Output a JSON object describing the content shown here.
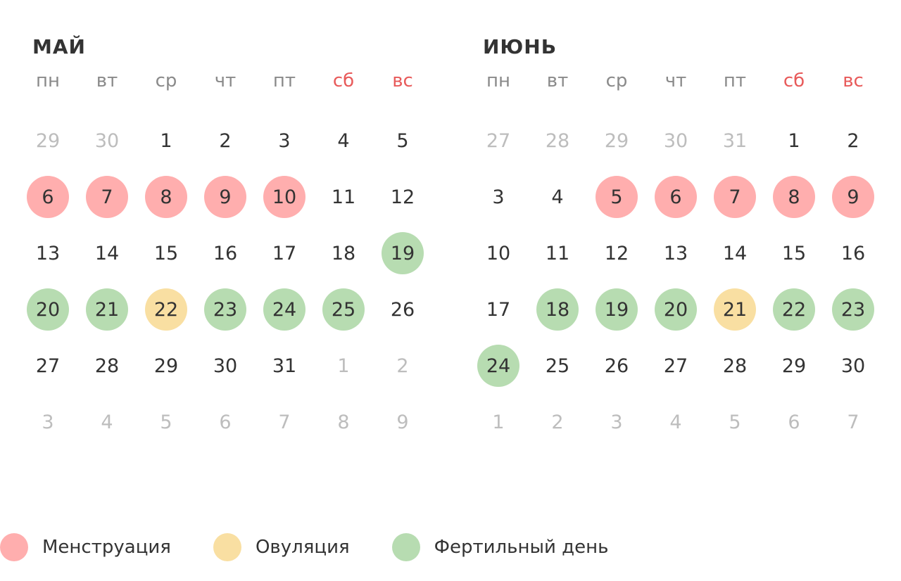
{
  "weekdays": [
    "пн",
    "вт",
    "ср",
    "чт",
    "пт",
    "сб",
    "вс"
  ],
  "colors": {
    "menstruation": "#ffaeae",
    "ovulation": "#f9dfa2",
    "fertile": "#b7dcb1",
    "weekend": "#e85a5a"
  },
  "months": [
    {
      "title": "МАЙ",
      "weeks": [
        [
          {
            "d": "29",
            "t": "out"
          },
          {
            "d": "30",
            "t": "out"
          },
          {
            "d": "1"
          },
          {
            "d": "2"
          },
          {
            "d": "3"
          },
          {
            "d": "4"
          },
          {
            "d": "5"
          }
        ],
        [
          {
            "d": "6",
            "t": "m"
          },
          {
            "d": "7",
            "t": "m"
          },
          {
            "d": "8",
            "t": "m"
          },
          {
            "d": "9",
            "t": "m"
          },
          {
            "d": "10",
            "t": "m"
          },
          {
            "d": "11"
          },
          {
            "d": "12"
          }
        ],
        [
          {
            "d": "13"
          },
          {
            "d": "14"
          },
          {
            "d": "15"
          },
          {
            "d": "16"
          },
          {
            "d": "17"
          },
          {
            "d": "18"
          },
          {
            "d": "19",
            "t": "f"
          }
        ],
        [
          {
            "d": "20",
            "t": "f"
          },
          {
            "d": "21",
            "t": "f"
          },
          {
            "d": "22",
            "t": "o"
          },
          {
            "d": "23",
            "t": "f"
          },
          {
            "d": "24",
            "t": "f"
          },
          {
            "d": "25",
            "t": "f"
          },
          {
            "d": "26"
          }
        ],
        [
          {
            "d": "27"
          },
          {
            "d": "28"
          },
          {
            "d": "29"
          },
          {
            "d": "30"
          },
          {
            "d": "31"
          },
          {
            "d": "1",
            "t": "out"
          },
          {
            "d": "2",
            "t": "out"
          }
        ],
        [
          {
            "d": "3",
            "t": "out"
          },
          {
            "d": "4",
            "t": "out"
          },
          {
            "d": "5",
            "t": "out"
          },
          {
            "d": "6",
            "t": "out"
          },
          {
            "d": "7",
            "t": "out"
          },
          {
            "d": "8",
            "t": "out"
          },
          {
            "d": "9",
            "t": "out"
          }
        ]
      ]
    },
    {
      "title": "ИЮНЬ",
      "weeks": [
        [
          {
            "d": "27",
            "t": "out"
          },
          {
            "d": "28",
            "t": "out"
          },
          {
            "d": "29",
            "t": "out"
          },
          {
            "d": "30",
            "t": "out"
          },
          {
            "d": "31",
            "t": "out"
          },
          {
            "d": "1"
          },
          {
            "d": "2"
          }
        ],
        [
          {
            "d": "3"
          },
          {
            "d": "4"
          },
          {
            "d": "5",
            "t": "m"
          },
          {
            "d": "6",
            "t": "m"
          },
          {
            "d": "7",
            "t": "m"
          },
          {
            "d": "8",
            "t": "m"
          },
          {
            "d": "9",
            "t": "m"
          }
        ],
        [
          {
            "d": "10"
          },
          {
            "d": "11"
          },
          {
            "d": "12"
          },
          {
            "d": "13"
          },
          {
            "d": "14"
          },
          {
            "d": "15"
          },
          {
            "d": "16"
          }
        ],
        [
          {
            "d": "17"
          },
          {
            "d": "18",
            "t": "f"
          },
          {
            "d": "19",
            "t": "f"
          },
          {
            "d": "20",
            "t": "f"
          },
          {
            "d": "21",
            "t": "o"
          },
          {
            "d": "22",
            "t": "f"
          },
          {
            "d": "23",
            "t": "f"
          }
        ],
        [
          {
            "d": "24",
            "t": "f"
          },
          {
            "d": "25"
          },
          {
            "d": "26"
          },
          {
            "d": "27"
          },
          {
            "d": "28"
          },
          {
            "d": "29"
          },
          {
            "d": "30"
          }
        ],
        [
          {
            "d": "1",
            "t": "out"
          },
          {
            "d": "2",
            "t": "out"
          },
          {
            "d": "3",
            "t": "out"
          },
          {
            "d": "4",
            "t": "out"
          },
          {
            "d": "5",
            "t": "out"
          },
          {
            "d": "6",
            "t": "out"
          },
          {
            "d": "7",
            "t": "out"
          }
        ]
      ]
    }
  ],
  "legend": [
    {
      "label": "Менструация",
      "type": "m"
    },
    {
      "label": "Овуляция",
      "type": "o"
    },
    {
      "label": "Фертильный день",
      "type": "f"
    }
  ]
}
